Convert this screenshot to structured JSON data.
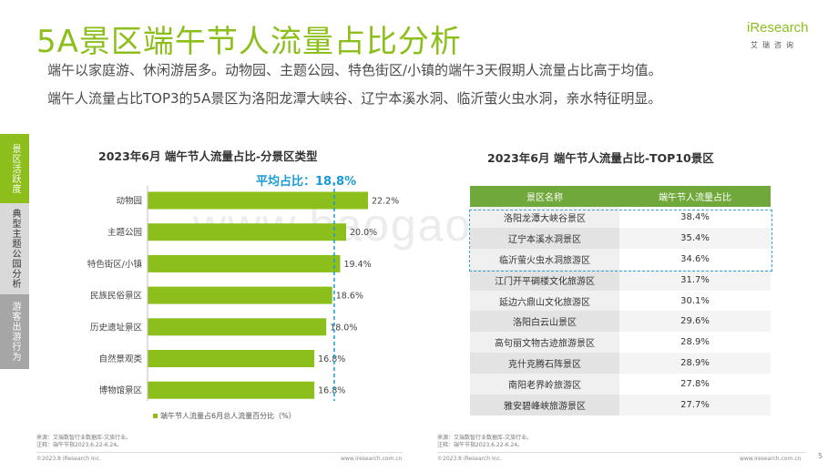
{
  "header": {
    "title": "5A景区端午节人流量占比分析",
    "logo_word": "iResearch",
    "logo_cn": "艾瑞咨询",
    "para1": "端午以家庭游、休闲游居多。动物园、主题公园、特色街区/小镇的端午3天假期人流量占比高于均值。",
    "para2": "端午人流量占比TOP3的5A景区为洛阳龙潭大峡谷、辽宁本溪水洞、临沂萤火虫水洞，亲水特征明显。"
  },
  "sidebar": {
    "tabs": [
      {
        "label": "景区活跃度"
      },
      {
        "label": "典型主题公园分析"
      },
      {
        "label": "游客出游行为"
      }
    ]
  },
  "watermark": "www.baogao.com",
  "chart_data": [
    {
      "type": "bar",
      "orientation": "horizontal",
      "title": "2023年6月 端午节人流量占比-分景区类型",
      "categories": [
        "动物园",
        "主题公园",
        "特色街区/小镇",
        "民族民俗景区",
        "历史遗址景区",
        "自然景观类",
        "博物馆景区"
      ],
      "series": [
        {
          "name": "端午节人流量占6月总人流量百分比（%）",
          "values": [
            22.2,
            20.0,
            19.4,
            18.6,
            18.0,
            16.8,
            16.8
          ]
        }
      ],
      "value_labels": [
        "22.2%",
        "20.0%",
        "19.4%",
        "18.6%",
        "18.0%",
        "16.8%",
        "16.8%"
      ],
      "average": {
        "label": "平均占比：18.8%",
        "value": 18.8
      },
      "bar_color": "#8cbf1c",
      "avg_line_color": "#1a9ad6",
      "legend_position": "bottom"
    },
    {
      "type": "table",
      "title": "2023年6月 端午节人流量占比-TOP10景区",
      "columns": [
        "景区名称",
        "端午节人流量占比"
      ],
      "rows": [
        [
          "洛阳龙潭大峡谷景区",
          "38.4%"
        ],
        [
          "辽宁本溪水洞景区",
          "35.4%"
        ],
        [
          "临沂萤火虫水洞旅游区",
          "34.6%"
        ],
        [
          "江门开平碉楼文化旅游区",
          "31.7%"
        ],
        [
          "延边六鼎山文化旅游区",
          "30.1%"
        ],
        [
          "洛阳白云山景区",
          "29.6%"
        ],
        [
          "高句丽文物古迹旅游景区",
          "28.9%"
        ],
        [
          "克什克腾石阵景区",
          "28.9%"
        ],
        [
          "南阳老界岭旅游区",
          "27.8%"
        ],
        [
          "雅安碧峰峡旅游景区",
          "27.7%"
        ]
      ],
      "header_color": "#70a83b",
      "highlight": "top 3 rows boxed with dashed blue border"
    }
  ],
  "footer": {
    "source_left_1": "来源：艾瑞数智行业数据库-文旅行业。",
    "source_left_2": "注释：端午节指2023.6.22-6.24。",
    "source_right_1": "来源：艾瑞数智行业数据库-文旅行业。",
    "source_right_2": "注释：端午节指2023.6.22-6.24。",
    "copyright_left": "©2023.8 iResearch Inc.",
    "url_left": "www.iresearch.com.cn",
    "copyright_right": "©2023.8 iResearch Inc.",
    "url_right": "www.iresearch.com.cn",
    "page_number": "5"
  }
}
